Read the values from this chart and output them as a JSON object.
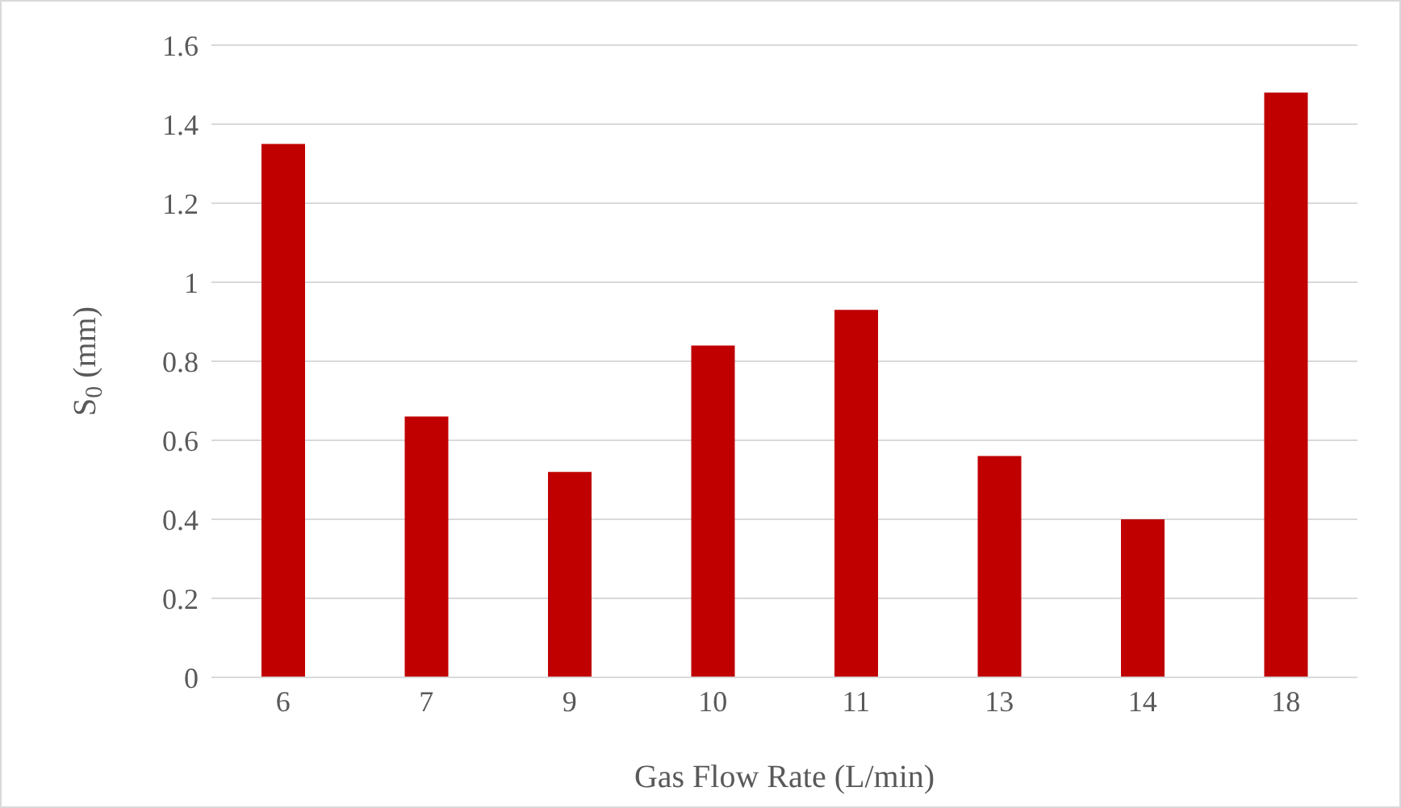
{
  "chart_data": {
    "type": "bar",
    "xlabel": "Gas Flow Rate (L/min)",
    "ylabel": "S$_{0}$ (mm)",
    "categories": [
      "6",
      "7",
      "9",
      "10",
      "11",
      "13",
      "14",
      "18"
    ],
    "values": [
      1.35,
      0.66,
      0.52,
      0.84,
      0.93,
      0.56,
      0.4,
      1.48
    ],
    "color": "#c00000",
    "ylim": [
      0,
      1.6
    ],
    "yticks": [
      0,
      0.2,
      0.4,
      0.6,
      0.8,
      1,
      1.2,
      1.4,
      1.6
    ],
    "grid": "y",
    "legend": false
  }
}
